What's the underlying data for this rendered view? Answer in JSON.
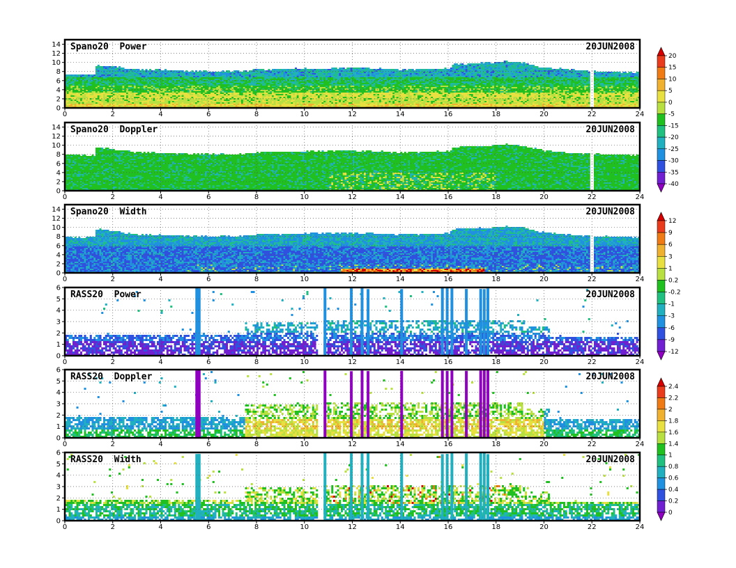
{
  "chart_data": [
    {
      "type": "heatmap",
      "title": "Spano20  Power",
      "date": "20JUN2008",
      "xlim": [
        0,
        24
      ],
      "ylim": [
        0,
        15
      ],
      "x_ticks": [
        0,
        2,
        4,
        6,
        8,
        10,
        12,
        14,
        16,
        18,
        20,
        22,
        24
      ],
      "y_ticks": [
        0,
        2,
        4,
        6,
        8,
        10,
        12,
        14
      ],
      "top_height": [
        [
          0,
          7.5
        ],
        [
          1.2,
          7.5
        ],
        [
          1.3,
          9.5
        ],
        [
          2,
          9.3
        ],
        [
          3,
          8.6
        ],
        [
          4,
          8.5
        ],
        [
          6,
          8.2
        ],
        [
          7,
          8.2
        ],
        [
          7.5,
          8.3
        ],
        [
          8,
          8.6
        ],
        [
          10,
          8.8
        ],
        [
          12,
          9
        ],
        [
          14,
          8.6
        ],
        [
          16,
          8.8
        ],
        [
          16.2,
          9.8
        ],
        [
          17.5,
          10
        ],
        [
          18.2,
          10.4
        ],
        [
          19,
          10.2
        ],
        [
          20,
          9
        ],
        [
          22,
          8.2
        ],
        [
          24,
          8.0
        ]
      ],
      "gap_hours": [
        21.95
      ],
      "scheme": "power"
    },
    {
      "type": "heatmap",
      "title": "Spano20  Doppler",
      "date": "20JUN2008",
      "xlim": [
        0,
        24
      ],
      "ylim": [
        0,
        15
      ],
      "x_ticks": [
        0,
        2,
        4,
        6,
        8,
        10,
        12,
        14,
        16,
        18,
        20,
        22,
        24
      ],
      "y_ticks": [
        0,
        2,
        4,
        6,
        8,
        10,
        12,
        14
      ],
      "top_height": [
        [
          0,
          8
        ],
        [
          1.2,
          8
        ],
        [
          1.3,
          9.8
        ],
        [
          2,
          9.3
        ],
        [
          3,
          8.6
        ],
        [
          4,
          8.5
        ],
        [
          6,
          8.2
        ],
        [
          7,
          8.2
        ],
        [
          7.5,
          8.3
        ],
        [
          8,
          8.6
        ],
        [
          10,
          8.8
        ],
        [
          12,
          9
        ],
        [
          14,
          8.6
        ],
        [
          16,
          8.8
        ],
        [
          16.2,
          9.8
        ],
        [
          17.5,
          10
        ],
        [
          18.2,
          10.4
        ],
        [
          19,
          10.2
        ],
        [
          20,
          9
        ],
        [
          22,
          8.2
        ],
        [
          24,
          8.0
        ]
      ],
      "gap_hours": [
        21.95
      ],
      "scheme": "doppler"
    },
    {
      "type": "heatmap",
      "title": "Spano20  Width",
      "date": "20JUN2008",
      "xlim": [
        0,
        24
      ],
      "ylim": [
        0,
        15
      ],
      "x_ticks": [
        0,
        2,
        4,
        6,
        8,
        10,
        12,
        14,
        16,
        18,
        20,
        22,
        24
      ],
      "y_ticks": [
        0,
        2,
        4,
        6,
        8,
        10,
        12,
        14
      ],
      "top_height": [
        [
          0,
          8
        ],
        [
          1.2,
          8
        ],
        [
          1.3,
          9.8
        ],
        [
          2,
          9.3
        ],
        [
          3,
          8.6
        ],
        [
          4,
          8.5
        ],
        [
          6,
          8.2
        ],
        [
          7,
          8.2
        ],
        [
          7.5,
          8.3
        ],
        [
          8,
          8.6
        ],
        [
          10,
          8.8
        ],
        [
          12,
          9
        ],
        [
          14,
          8.6
        ],
        [
          16,
          8.8
        ],
        [
          16.2,
          9.8
        ],
        [
          17.5,
          10
        ],
        [
          18.2,
          10.4
        ],
        [
          19,
          10.2
        ],
        [
          20,
          9
        ],
        [
          22,
          8.2
        ],
        [
          24,
          8.0
        ]
      ],
      "gap_hours": [
        21.95
      ],
      "scheme": "width"
    },
    {
      "type": "heatmap",
      "title": "RASS20  Power",
      "date": "20JUN2008",
      "xlim": [
        0,
        24
      ],
      "ylim": [
        0,
        6
      ],
      "x_ticks": [
        0,
        2,
        4,
        6,
        8,
        10,
        12,
        14,
        16,
        18,
        20,
        22,
        24
      ],
      "y_ticks": [
        0,
        1,
        2,
        3,
        4,
        5,
        6
      ],
      "scheme": "rass_power"
    },
    {
      "type": "heatmap",
      "title": "RASS20  Doppler",
      "date": "20JUN2008",
      "xlim": [
        0,
        24
      ],
      "ylim": [
        0,
        6
      ],
      "x_ticks": [
        0,
        2,
        4,
        6,
        8,
        10,
        12,
        14,
        16,
        18,
        20,
        22,
        24
      ],
      "y_ticks": [
        0,
        1,
        2,
        3,
        4,
        5,
        6
      ],
      "scheme": "rass_doppler"
    },
    {
      "type": "heatmap",
      "title": "RASS20  Width",
      "date": "20JUN2008",
      "xlim": [
        0,
        24
      ],
      "ylim": [
        0,
        6
      ],
      "x_ticks": [
        0,
        2,
        4,
        6,
        8,
        10,
        12,
        14,
        16,
        18,
        20,
        22,
        24
      ],
      "y_ticks": [
        0,
        1,
        2,
        3,
        4,
        5,
        6
      ],
      "scheme": "rass_width"
    }
  ],
  "colorbars": [
    {
      "labels": [
        "20",
        "15",
        "10",
        "5",
        "0",
        "-5",
        "-15",
        "-20",
        "-25",
        "-30",
        "-35",
        "-40"
      ],
      "colors": [
        "#d60000",
        "#ea3c1c",
        "#f07a14",
        "#f0b030",
        "#e8e040",
        "#b8e040",
        "#20c020",
        "#20c080",
        "#20b0c0",
        "#2090e0",
        "#3050e0",
        "#7020d0",
        "#9000c0"
      ]
    },
    {
      "labels": [
        "12",
        "9",
        "6",
        "3",
        "1",
        "0.2",
        "-0.2",
        "-1",
        "-3",
        "-6",
        "-9",
        "-12"
      ],
      "colors": [
        "#d60000",
        "#ea3c1c",
        "#f07a14",
        "#f0b030",
        "#e8e040",
        "#b8e040",
        "#20c020",
        "#20c080",
        "#20b0c0",
        "#2090e0",
        "#3050e0",
        "#7020d0",
        "#9000c0"
      ]
    },
    {
      "labels": [
        "2.4",
        "2.2",
        "2",
        "1.8",
        "1.6",
        "1.4",
        "1",
        "0.8",
        "0.6",
        "0.4",
        "0.2",
        "0"
      ],
      "colors": [
        "#d60000",
        "#ea3c1c",
        "#f07a14",
        "#f0b030",
        "#e8e040",
        "#b8e040",
        "#20c020",
        "#20c080",
        "#20b0c0",
        "#2090e0",
        "#3050e0",
        "#7020d0",
        "#9000c0"
      ]
    }
  ]
}
